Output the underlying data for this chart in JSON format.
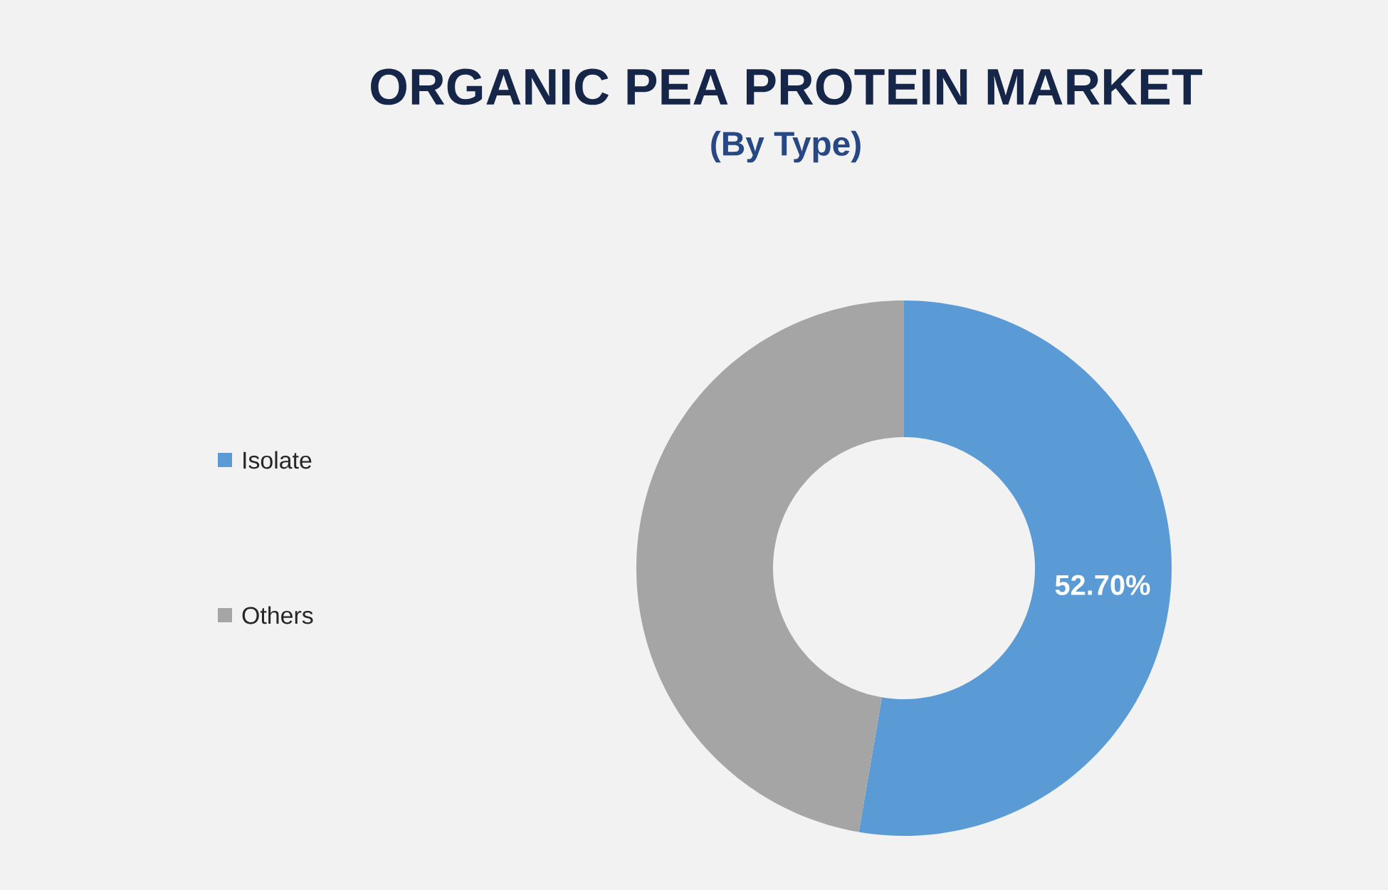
{
  "chart_data": {
    "type": "donut",
    "title": "ORGANIC PEA PROTEIN MARKET",
    "subtitle": "(By Type)",
    "categories": [
      "Isolate",
      "Others"
    ],
    "values": [
      52.7,
      47.3
    ],
    "colors": [
      "#5b9bd5",
      "#a5a5a5"
    ],
    "value_labels": [
      "52.70%",
      null
    ],
    "legend": "left"
  }
}
